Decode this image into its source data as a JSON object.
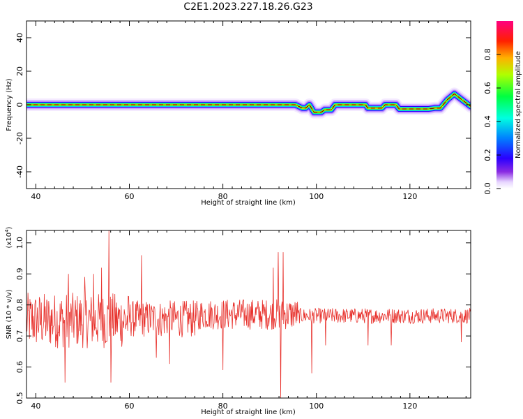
{
  "title": "C2E1.2023.227.18.26.G23",
  "colorbar": {
    "label": "Normalized spectral amplitude",
    "ticks": [
      "0.0",
      "0.2",
      "0.4",
      "0.6",
      "0.8"
    ],
    "tick_values": [
      0.0,
      0.2,
      0.4,
      0.6,
      0.8
    ],
    "range": [
      0,
      1
    ]
  },
  "chart_data": [
    {
      "type": "heatmap",
      "xlabel": "Height of straight line (km)",
      "ylabel": "Frequency (Hz)",
      "xlim": [
        38,
        133
      ],
      "ylim": [
        -50,
        50
      ],
      "xticks": [
        "40",
        "60",
        "80",
        "100",
        "120"
      ],
      "xtick_values": [
        40,
        60,
        80,
        100,
        120
      ],
      "yticks": [
        "-40",
        "-20",
        "0",
        "20",
        "40"
      ],
      "ytick_values": [
        -40,
        -20,
        0,
        20,
        40
      ],
      "ridge": {
        "height_km": [
          38,
          60,
          80,
          94,
          95.5,
          97,
          97.7,
          98.5,
          99.5,
          101,
          101.8,
          102.5,
          103.2,
          104,
          108,
          110.5,
          111,
          114,
          114.7,
          117,
          117.7,
          124,
          125.3,
          126.5,
          128,
          129.5,
          133
        ],
        "frequency_hz": [
          0,
          0,
          0,
          0,
          0,
          -2,
          -2,
          0,
          -4.5,
          -4.5,
          -3,
          -3,
          -3,
          0,
          0,
          0,
          -2,
          -2,
          0,
          0,
          -2.5,
          -2.5,
          -2,
          -2,
          3,
          6.5,
          -1
        ]
      }
    },
    {
      "type": "line",
      "xlabel": "Height of straight line (km)",
      "ylabel": "SNR (10 * v/v)",
      "y_multiplier_label": "(x10",
      "y_multiplier_exp": "4",
      "y_multiplier_close": ")",
      "xlim": [
        38,
        133
      ],
      "ylim": [
        0.5,
        1.04
      ],
      "xticks": [
        "40",
        "60",
        "80",
        "100",
        "120"
      ],
      "xtick_values": [
        40,
        60,
        80,
        100,
        120
      ],
      "yticks": [
        "0.5",
        "0.6",
        "0.7",
        "0.8",
        "0.9",
        "1.0"
      ],
      "ytick_values": [
        0.5,
        0.6,
        0.7,
        0.8,
        0.9,
        1.0
      ],
      "series_color": "#e8322d",
      "spikes": [
        {
          "x": 46.2,
          "y": 0.55
        },
        {
          "x": 47.0,
          "y": 0.9
        },
        {
          "x": 50.5,
          "y": 0.89
        },
        {
          "x": 52.4,
          "y": 0.9
        },
        {
          "x": 54.0,
          "y": 0.92
        },
        {
          "x": 55.6,
          "y": 1.04
        },
        {
          "x": 56.1,
          "y": 0.55
        },
        {
          "x": 62.6,
          "y": 0.96
        },
        {
          "x": 65.8,
          "y": 0.63
        },
        {
          "x": 68.6,
          "y": 0.61
        },
        {
          "x": 80.0,
          "y": 0.59
        },
        {
          "x": 90.8,
          "y": 0.92
        },
        {
          "x": 91.8,
          "y": 0.97
        },
        {
          "x": 92.4,
          "y": 0.5
        },
        {
          "x": 92.9,
          "y": 0.97
        },
        {
          "x": 99.0,
          "y": 0.58
        },
        {
          "x": 102.0,
          "y": 0.67
        },
        {
          "x": 111.0,
          "y": 0.67
        },
        {
          "x": 116.0,
          "y": 0.67
        },
        {
          "x": 131.0,
          "y": 0.68
        }
      ]
    }
  ]
}
